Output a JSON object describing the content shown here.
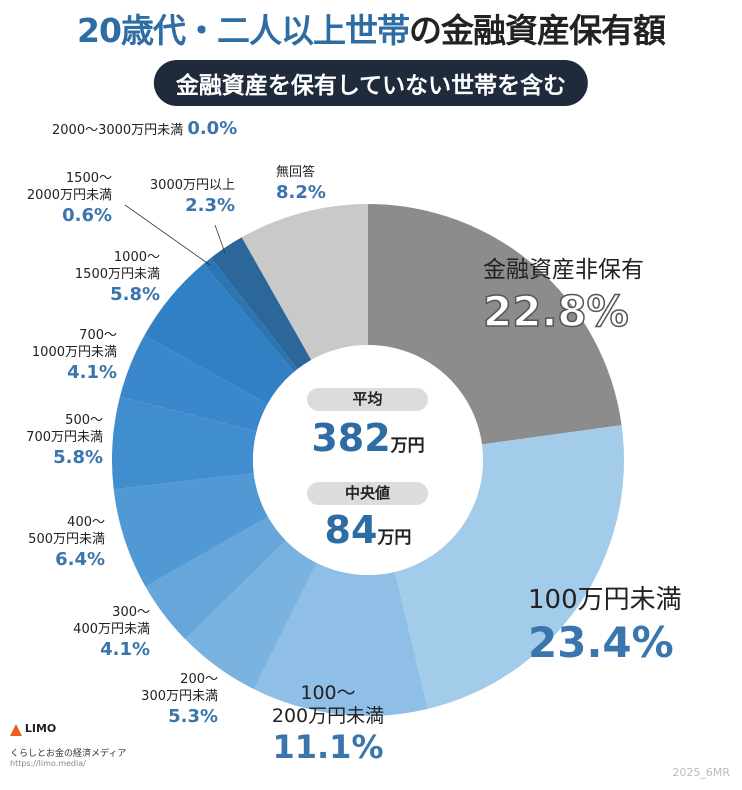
{
  "header": {
    "title_highlight": "20歳代・二人以上世帯",
    "title_rest": "の金融資産保有額",
    "subtitle": "金融資産を保有していない世帯を含む"
  },
  "center": {
    "mean_label": "平均",
    "mean_value": "382",
    "mean_unit": "万円",
    "median_label": "中央値",
    "median_value": "84",
    "median_unit": "万円"
  },
  "chart_data": {
    "type": "pie",
    "donut": true,
    "start": "top, clockwise",
    "slices": [
      {
        "l1": "金融資産非保有",
        "l2": "",
        "value": 22.8,
        "pct": "22.8%",
        "color": "#8c8c8c"
      },
      {
        "l1": "100万円未満",
        "l2": "",
        "value": 23.4,
        "pct": "23.4%",
        "color": "#a3cbea"
      },
      {
        "l1": "100〜",
        "l2": "200万円未満",
        "value": 11.1,
        "pct": "11.1%",
        "color": "#8fbfe6"
      },
      {
        "l1": "200〜",
        "l2": "300万円未満",
        "value": 5.3,
        "pct": "5.3%",
        "color": "#7ab2e0"
      },
      {
        "l1": "300〜",
        "l2": "400万円未満",
        "value": 4.1,
        "pct": "4.1%",
        "color": "#66a6db"
      },
      {
        "l1": "400〜",
        "l2": "500万円未満",
        "value": 6.4,
        "pct": "6.4%",
        "color": "#5199d5"
      },
      {
        "l1": "500〜",
        "l2": "700万円未満",
        "value": 5.8,
        "pct": "5.8%",
        "color": "#418ecf"
      },
      {
        "l1": "700〜",
        "l2": "1000万円未満",
        "value": 4.1,
        "pct": "4.1%",
        "color": "#3a88cb"
      },
      {
        "l1": "1000〜",
        "l2": "1500万円未満",
        "value": 5.8,
        "pct": "5.8%",
        "color": "#3080c3"
      },
      {
        "l1": "1500〜",
        "l2": "2000万円未満",
        "value": 0.6,
        "pct": "0.6%",
        "color": "#2b75b2"
      },
      {
        "l1": "2000〜3000万円未満",
        "l2": "",
        "value": 0.0,
        "pct": "0.0%",
        "color": "#2a6ea8"
      },
      {
        "l1": "3000万円以上",
        "l2": "",
        "value": 2.3,
        "pct": "2.3%",
        "color": "#2c679c"
      },
      {
        "l1": "無回答",
        "l2": "",
        "value": 8.2,
        "pct": "8.2%",
        "color": "#c9c9c9"
      }
    ]
  },
  "footer": {
    "logo": "LIMO",
    "tagline": "くらしとお金の経済メディア",
    "url": "https://limo.media/",
    "code": "2025_6MR"
  }
}
